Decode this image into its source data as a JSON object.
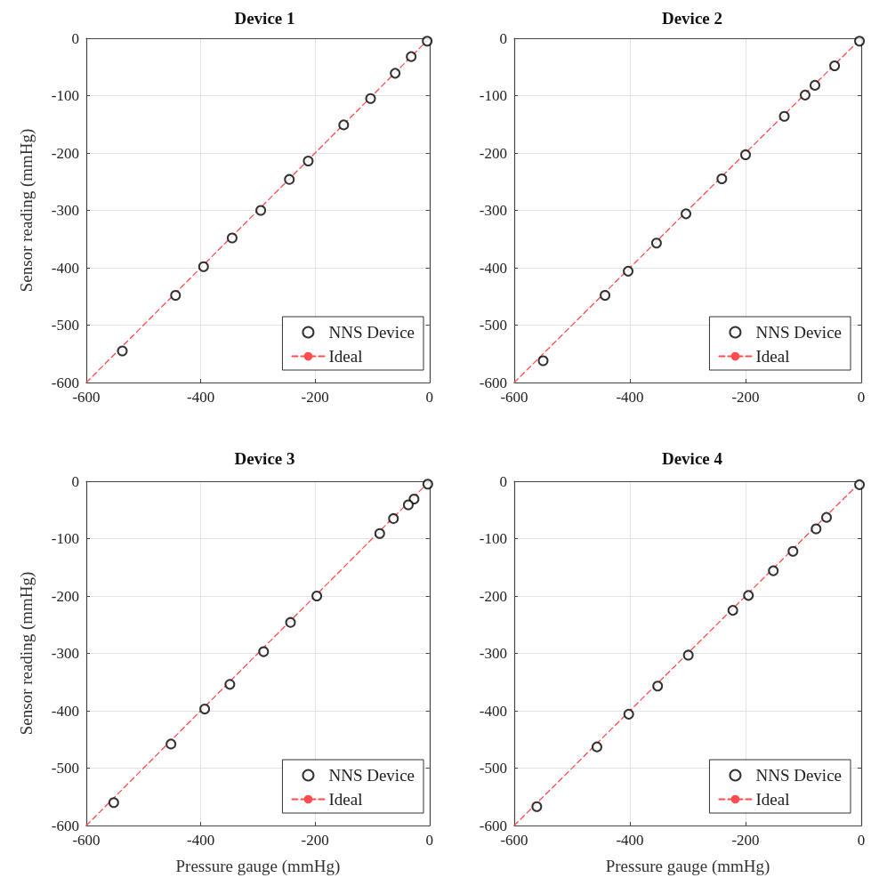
{
  "chart_data": [
    {
      "type": "scatter",
      "title": "Device 1",
      "ylabel": "Sensor reading (mmHg)",
      "xlim": [
        -600,
        0
      ],
      "ylim": [
        -600,
        0
      ],
      "xticks": [
        -600,
        -400,
        -200,
        0
      ],
      "yticks": [
        -600,
        -500,
        -400,
        -300,
        -200,
        -100,
        0
      ],
      "grid": true,
      "legend": "bottom right",
      "series": [
        {
          "name": "NNS Device",
          "color": "#000000",
          "marker": "circle",
          "x": [
            -4,
            -32,
            -60,
            -103,
            -150,
            -212,
            -245,
            -295,
            -345,
            -395,
            -444,
            -537
          ],
          "values": [
            -5,
            -32,
            -61,
            -105,
            -151,
            -214,
            -246,
            -300,
            -348,
            -398,
            -448,
            -545
          ]
        },
        {
          "name": "Ideal",
          "type": "line",
          "color": "#ff4d4d",
          "line_style": "dashed",
          "marker": "none",
          "x": [
            -600,
            0
          ],
          "values": [
            -600,
            0
          ]
        }
      ]
    },
    {
      "type": "scatter",
      "title": "Device 2",
      "xlim": [
        -600,
        0
      ],
      "ylim": [
        -600,
        0
      ],
      "xticks": [
        -600,
        -400,
        -200,
        0
      ],
      "yticks": [
        -600,
        -500,
        -400,
        -300,
        -200,
        -100,
        0
      ],
      "grid": true,
      "legend": "bottom right",
      "series": [
        {
          "name": "NNS Device",
          "color": "#000000",
          "marker": "circle",
          "x": [
            -3,
            -46,
            -80,
            -97,
            -133,
            -200,
            -241,
            -303,
            -354,
            -403,
            -443,
            -550
          ],
          "values": [
            -5,
            -48,
            -82,
            -99,
            -136,
            -203,
            -245,
            -306,
            -357,
            -406,
            -448,
            -562
          ]
        },
        {
          "name": "Ideal",
          "type": "line",
          "color": "#ff4d4d",
          "line_style": "dashed",
          "marker": "none",
          "x": [
            -600,
            0
          ],
          "values": [
            -600,
            0
          ]
        }
      ]
    },
    {
      "type": "scatter",
      "title": "Device 3",
      "xlabel": "Pressure gauge (mmHg)",
      "ylabel": "Sensor reading (mmHg)",
      "xlim": [
        -600,
        0
      ],
      "ylim": [
        -600,
        0
      ],
      "xticks": [
        -600,
        -400,
        -200,
        0
      ],
      "yticks": [
        -600,
        -500,
        -400,
        -300,
        -200,
        -100,
        0
      ],
      "grid": true,
      "legend": "bottom right",
      "series": [
        {
          "name": "NNS Device",
          "color": "#000000",
          "marker": "circle",
          "x": [
            -3,
            -27,
            -37,
            -63,
            -87,
            -197,
            -243,
            -290,
            -349,
            -393,
            -452,
            -552
          ],
          "values": [
            -5,
            -31,
            -41,
            -65,
            -91,
            -200,
            -246,
            -297,
            -354,
            -397,
            -458,
            -560
          ]
        },
        {
          "name": "Ideal",
          "type": "line",
          "color": "#ff4d4d",
          "line_style": "dashed",
          "marker": "none",
          "x": [
            -600,
            0
          ],
          "values": [
            -600,
            0
          ]
        }
      ]
    },
    {
      "type": "scatter",
      "title": "Device 4",
      "xlabel": "Pressure gauge (mmHg)",
      "xlim": [
        -600,
        0
      ],
      "ylim": [
        -600,
        0
      ],
      "xticks": [
        -600,
        -400,
        -200,
        0
      ],
      "yticks": [
        -600,
        -500,
        -400,
        -300,
        -200,
        -100,
        0
      ],
      "grid": true,
      "legend": "bottom right",
      "series": [
        {
          "name": "NNS Device",
          "color": "#000000",
          "marker": "circle",
          "x": [
            -3,
            -60,
            -78,
            -118,
            -152,
            -195,
            -222,
            -299,
            -352,
            -402,
            -457,
            -561
          ],
          "values": [
            -6,
            -63,
            -83,
            -122,
            -156,
            -199,
            -225,
            -303,
            -357,
            -406,
            -463,
            -567
          ]
        },
        {
          "name": "Ideal",
          "type": "line",
          "color": "#ff4d4d",
          "line_style": "dashed",
          "marker": "none",
          "x": [
            -600,
            0
          ],
          "values": [
            -600,
            0
          ]
        }
      ]
    }
  ]
}
